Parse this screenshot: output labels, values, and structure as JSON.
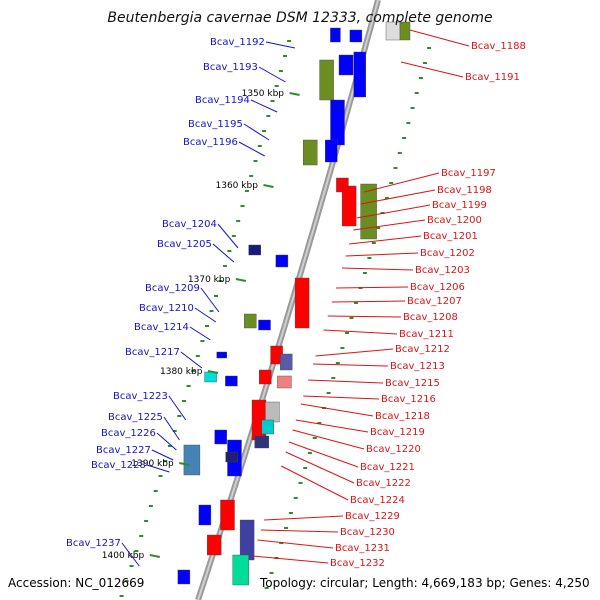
{
  "title": "Beutenbergia cavernae DSM 12333, complete genome",
  "footer": {
    "accession": "Accession: NC_012669",
    "topology": "Topology: circular; Length: 4,669,183 bp; Genes: 4,250"
  },
  "colors": {
    "left_label": "#1414c8",
    "right_label": "#dc1414",
    "cds_plus": "#ff0000",
    "cds_minus": "#0000ff",
    "cog_olive": "#6b8e23",
    "backbone": "#888888"
  },
  "ticks": [
    "1350 kbp",
    "1360 kbp",
    "1370 kbp",
    "1380 kbp",
    "1390 kbp",
    "1400 kbp"
  ],
  "left_genes": [
    "Bcav_1192",
    "Bcav_1193",
    "Bcav_1194",
    "Bcav_1195",
    "Bcav_1196",
    "Bcav_1204",
    "Bcav_1205",
    "Bcav_1209",
    "Bcav_1210",
    "Bcav_1214",
    "Bcav_1217",
    "Bcav_1223",
    "Bcav_1225",
    "Bcav_1226",
    "Bcav_1227",
    "Bcav_1228",
    "Bcav_1237"
  ],
  "right_genes": [
    "Bcav_1188",
    "Bcav_1191",
    "Bcav_1197",
    "Bcav_1198",
    "Bcav_1199",
    "Bcav_1200",
    "Bcav_1201",
    "Bcav_1202",
    "Bcav_1203",
    "Bcav_1206",
    "Bcav_1207",
    "Bcav_1208",
    "Bcav_1211",
    "Bcav_1212",
    "Bcav_1213",
    "Bcav_1215",
    "Bcav_1216",
    "Bcav_1218",
    "Bcav_1219",
    "Bcav_1220",
    "Bcav_1221",
    "Bcav_1222",
    "Bcav_1224",
    "Bcav_1229",
    "Bcav_1230",
    "Bcav_1231",
    "Bcav_1232"
  ]
}
